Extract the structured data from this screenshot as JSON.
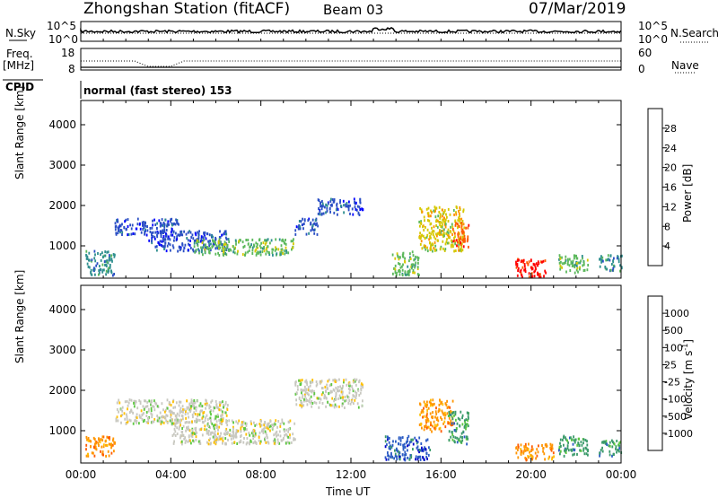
{
  "header": {
    "station": "Zhongshan Station (fitACF)",
    "beam": "Beam 03",
    "date": "07/Mar/2019"
  },
  "top_panels": {
    "nsky_label": "N.Sky",
    "nsky_ticks": [
      "10^5",
      "10^0"
    ],
    "nsearch_label": "N.Search",
    "nsearch_ticks": [
      "10^5",
      "10^0"
    ],
    "freq_label": "Freq.",
    "freq_unit": "[MHz]",
    "freq_ticks": [
      "18",
      "8"
    ],
    "nave_label": "Nave",
    "nave_ticks": [
      "60",
      "0"
    ],
    "cpid_label": "CPID",
    "cpid_text": "normal (fast stereo) 153"
  },
  "chart_data": [
    {
      "type": "heatmap",
      "name": "power",
      "ylabel": "Slant Range [km]",
      "yticks": [
        "4000",
        "3000",
        "2000",
        "1000"
      ],
      "ytick_values": [
        4000,
        3000,
        2000,
        1000
      ],
      "ylim": [
        200,
        4600
      ],
      "xlim_hours": [
        0,
        24
      ],
      "colorbar": {
        "label": "Power [dB]",
        "ticks": [
          "28",
          "24",
          "20",
          "16",
          "12",
          "8",
          "4"
        ],
        "colors": [
          "#0000ff",
          "#2b4fc4",
          "#2f8f8f",
          "#5cb85c",
          "#d6c800",
          "#ff9000",
          "#ff5a00",
          "#ff0000"
        ]
      },
      "regions": [
        {
          "t": [
            0.2,
            1.5
          ],
          "r": [
            300,
            900
          ],
          "c": 2
        },
        {
          "t": [
            1.5,
            4.5
          ],
          "r": [
            1300,
            1700
          ],
          "c": 1
        },
        {
          "t": [
            3.0,
            6.5
          ],
          "r": [
            900,
            1400
          ],
          "c": 1
        },
        {
          "t": [
            5.0,
            9.5
          ],
          "r": [
            800,
            1200
          ],
          "c": 3
        },
        {
          "t": [
            9.5,
            10.5
          ],
          "r": [
            1300,
            1700
          ],
          "c": 1
        },
        {
          "t": [
            10.5,
            12.5
          ],
          "r": [
            1800,
            2200
          ],
          "c": 1
        },
        {
          "t": [
            13.8,
            15.0
          ],
          "r": [
            300,
            900
          ],
          "c": 3
        },
        {
          "t": [
            15.0,
            17.0
          ],
          "r": [
            900,
            2000
          ],
          "c": 4
        },
        {
          "t": [
            16.5,
            17.2
          ],
          "r": [
            1000,
            1600
          ],
          "c": 6
        },
        {
          "t": [
            19.3,
            20.7
          ],
          "r": [
            250,
            700
          ],
          "c": 7
        },
        {
          "t": [
            21.2,
            22.5
          ],
          "r": [
            350,
            800
          ],
          "c": 3
        },
        {
          "t": [
            23.0,
            24.0
          ],
          "r": [
            400,
            800
          ],
          "c": 2
        }
      ]
    },
    {
      "type": "heatmap",
      "name": "velocity",
      "ylabel": "Slant Range [km]",
      "yticks": [
        "4000",
        "3000",
        "2000",
        "1000"
      ],
      "ytick_values": [
        4000,
        3000,
        2000,
        1000
      ],
      "ylim": [
        200,
        4600
      ],
      "xlim_hours": [
        0,
        24
      ],
      "xticks": [
        "00:00",
        "04:00",
        "08:00",
        "12:00",
        "16:00",
        "20:00",
        "00:00"
      ],
      "xtick_values": [
        0,
        4,
        8,
        12,
        16,
        20,
        24
      ],
      "xlabel": "Time UT",
      "colorbar": {
        "label": "Velocity [m s",
        "label_sup": "-1",
        "label_close": "]",
        "ticks": [
          "1000",
          "500",
          "100",
          "25",
          "-25",
          "-100",
          "-500",
          "-1000"
        ],
        "colors": [
          "#ff0000",
          "#ff5a00",
          "#ff9500",
          "#ffc000",
          "#c8c8c0",
          "#5cc840",
          "#3a9a6a",
          "#2b5cc4",
          "#0000c8"
        ]
      },
      "regions": [
        {
          "t": [
            0.2,
            1.5
          ],
          "r": [
            400,
            900
          ],
          "c": 2
        },
        {
          "t": [
            1.5,
            6.5
          ],
          "r": [
            1200,
            1800
          ],
          "c": 4
        },
        {
          "t": [
            4.0,
            9.5
          ],
          "r": [
            700,
            1300
          ],
          "c": 4
        },
        {
          "t": [
            9.5,
            12.5
          ],
          "r": [
            1600,
            2300
          ],
          "c": 4
        },
        {
          "t": [
            13.5,
            15.5
          ],
          "r": [
            300,
            900
          ],
          "c": 7
        },
        {
          "t": [
            15.0,
            16.5
          ],
          "r": [
            1000,
            1800
          ],
          "c": 2
        },
        {
          "t": [
            16.3,
            17.2
          ],
          "r": [
            700,
            1500
          ],
          "c": 6
        },
        {
          "t": [
            19.3,
            21.0
          ],
          "r": [
            300,
            700
          ],
          "c": 2
        },
        {
          "t": [
            21.2,
            22.5
          ],
          "r": [
            400,
            900
          ],
          "c": 6
        },
        {
          "t": [
            23.0,
            24.0
          ],
          "r": [
            400,
            800
          ],
          "c": 6
        }
      ]
    }
  ]
}
